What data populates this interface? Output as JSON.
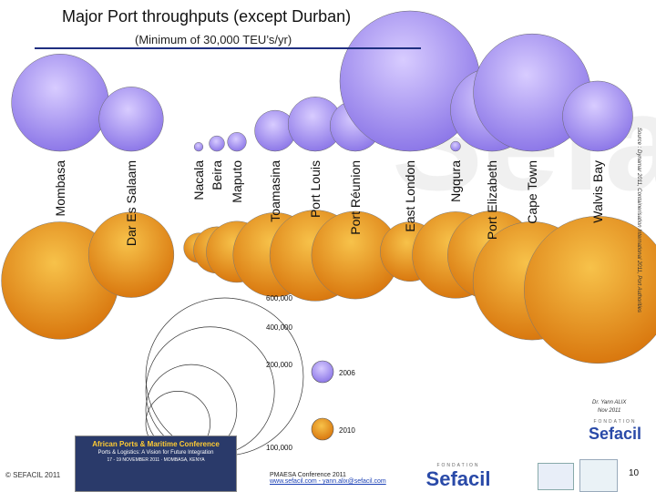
{
  "slide": {
    "title": "Major Port throughputs (except Durban)",
    "subtitle": "(Minimum of 30,000 TEU’s/yr)",
    "source": "Source : Dynamar 2011, Containerisation International 2011, Port Authorities",
    "author": [
      "Dr. Yann ALIX",
      "Nov 2011"
    ],
    "footer_left": "© SEFACIL 2011",
    "conference_line1": "PMAESA Conference 2011",
    "conference_line2": "www.sefacil.com - yann.alix@sefacil.com",
    "page_number": "10",
    "sefacil_foundation": "FONDATION",
    "sefacil_name": "Sefacil",
    "banner_title": "African Ports & Maritime Conference",
    "banner_sub": "Ports & Logistics: A Vision for Future Integration",
    "banner_date": "17 - 19 NOVEMBER 2011 · MOMBASA, KENYA",
    "watermark": "Sefac"
  },
  "colors": {
    "bubble_2006": "#a28ff0",
    "bubble_2010": "#e8901a",
    "accent_rule": "#1f2f80"
  },
  "chart_data": {
    "type": "bubble",
    "title": "Major Port throughputs (except Durban)",
    "subtitle": "(Minimum of 30,000 TEU’s/yr)",
    "unit": "TEU",
    "legend": [
      "2006",
      "2010"
    ],
    "legend_placement": "bottom-center",
    "scale_labels": [
      "600,000",
      "400,000",
      "200,000",
      "100,000"
    ],
    "ports": [
      {
        "name": "Mombasa",
        "y2006": 480000,
        "y2010": 700000
      },
      {
        "name": "Dar Es Salaam",
        "y2006": 210000,
        "y2010": 370000
      },
      {
        "name": "Nacala",
        "y2006": 4000,
        "y2010": 45000
      },
      {
        "name": "Beira",
        "y2006": 12000,
        "y2010": 110000
      },
      {
        "name": "Maputo",
        "y2006": 18000,
        "y2010": 190000
      },
      {
        "name": "Toamasina",
        "y2006": 85000,
        "y2010": 360000
      },
      {
        "name": "Port Louis",
        "y2006": 150000,
        "y2010": 420000
      },
      {
        "name": "Port Réunion",
        "y2006": 130000,
        "y2010": 390000
      },
      {
        "name": "East London",
        "y2006": 1000000,
        "y2010": 180000
      },
      {
        "name": "Ngqura",
        "y2006": 5000,
        "y2010": 380000
      },
      {
        "name": "Port Elizabeth",
        "y2006": 350000,
        "y2010": 400000
      },
      {
        "name": "Cape Town",
        "y2006": 700000,
        "y2010": 710000
      },
      {
        "name": "Walvis Bay",
        "y2006": 250000,
        "y2010": 1100000
      }
    ]
  }
}
